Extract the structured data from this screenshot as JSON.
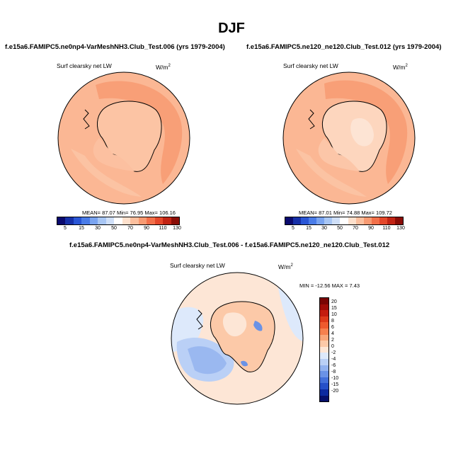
{
  "title": "DJF",
  "panels": [
    {
      "case": "f.e15a6.FAMIPC5.ne0np4-VarMeshNH3.Club_Test.006 (yrs 1979-2004)",
      "variable": "Surf clearsky net LW",
      "units_base": "W/m",
      "units_exp": "2",
      "stats": "MEAN=  87.07  Min=  76.95  Max= 106.16"
    },
    {
      "case": "f.e15a6.FAMIPC5.ne120_ne120.Club_Test.012 (yrs 1979-2004)",
      "variable": "Surf clearsky net LW",
      "units_base": "W/m",
      "units_exp": "2",
      "stats": "MEAN=  87.01  Min=  74.88  Max= 109.72"
    }
  ],
  "diff_panel": {
    "case": "f.e15a6.FAMIPC5.ne0np4-VarMeshNH3.Club_Test.006 - f.e15a6.FAMIPC5.ne120_ne120.Club_Test.012",
    "variable": "Surf clearsky net LW",
    "units_base": "W/m",
    "units_exp": "2",
    "stats": "MIN = -12.56  MAX =   7.43"
  },
  "field_colorbar": {
    "labels": [
      "5",
      "15",
      "30",
      "50",
      "70",
      "90",
      "110",
      "130"
    ],
    "colors": [
      "#0a0a6e",
      "#1630a8",
      "#2a56d6",
      "#4a7ce8",
      "#7aa4f0",
      "#a8c6f4",
      "#cfdff8",
      "#ffffff",
      "#fde0cc",
      "#fbbf9e",
      "#f79a72",
      "#f2704a",
      "#e4472a",
      "#c22414",
      "#8a0c06"
    ]
  },
  "diff_colorbar": {
    "labels": [
      "20",
      "15",
      "10",
      "8",
      "6",
      "4",
      "2",
      "0",
      "-2",
      "-4",
      "-6",
      "-8",
      "-10",
      "-15",
      "-20"
    ],
    "colors": [
      "#7a0404",
      "#a00c08",
      "#c41c0e",
      "#de3a1a",
      "#ee5a2e",
      "#f6804e",
      "#f9a679",
      "#fcc9a8",
      "#fde6d6",
      "#dde9fb",
      "#bad0f6",
      "#92b2ef",
      "#6a92e6",
      "#4470da",
      "#2650c8",
      "#0c2aa0",
      "#06106a"
    ]
  }
}
